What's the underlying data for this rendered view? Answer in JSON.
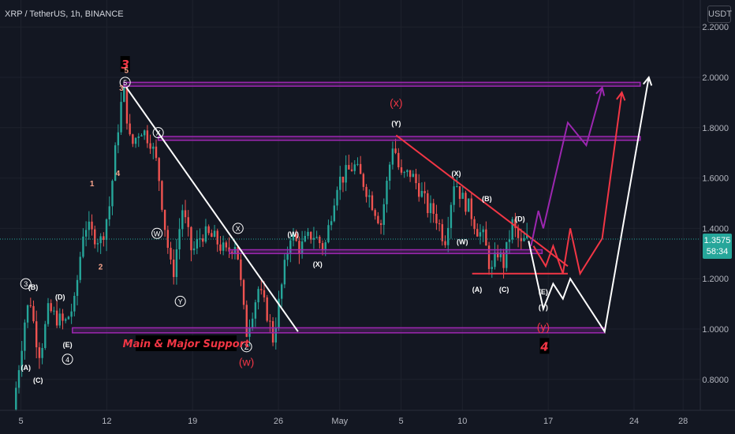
{
  "header": {
    "title": "XRP / TetherUS, 1h, BINANCE",
    "currency": "USDT"
  },
  "price_badge": {
    "price": "1.3575",
    "countdown": "58:34"
  },
  "colors": {
    "background": "#131722",
    "up": "#26a69a",
    "down": "#ef5350",
    "purple": "#9c27b0",
    "red_line": "#f23645",
    "white_line": "#ffffff",
    "grid": "#1e222d",
    "axis_text": "#b2b5be"
  },
  "chart_data": {
    "type": "candlestick",
    "symbol": "XRP / TetherUS",
    "interval": "1h",
    "exchange": "BINANCE",
    "ylim": [
      0.68,
      2.25
    ],
    "x_ticks": [
      "5",
      "12",
      "19",
      "26",
      "May",
      "5",
      "10",
      "17",
      "24",
      "28"
    ],
    "y_ticks": [
      "2.2000",
      "2.0000",
      "1.8000",
      "1.6000",
      "1.4000",
      "1.2000",
      "1.0000",
      "0.8000"
    ],
    "current_price": 1.3575,
    "price_path": [
      {
        "day": 4.6,
        "price": 0.68
      },
      {
        "day": 5.2,
        "price": 0.9
      },
      {
        "day": 5.6,
        "price": 1.05
      },
      {
        "day": 6.0,
        "price": 1.12
      },
      {
        "day": 6.4,
        "price": 0.98
      },
      {
        "day": 6.8,
        "price": 0.9
      },
      {
        "day": 7.5,
        "price": 1.08
      },
      {
        "day": 8.0,
        "price": 1.05
      },
      {
        "day": 8.8,
        "price": 1.02
      },
      {
        "day": 9.6,
        "price": 1.1
      },
      {
        "day": 10.4,
        "price": 1.42
      },
      {
        "day": 11.0,
        "price": 1.38
      },
      {
        "day": 11.8,
        "price": 1.35
      },
      {
        "day": 12.5,
        "price": 1.5
      },
      {
        "day": 13.1,
        "price": 1.78
      },
      {
        "day": 13.6,
        "price": 1.96
      },
      {
        "day": 14.2,
        "price": 1.72
      },
      {
        "day": 15.0,
        "price": 1.8
      },
      {
        "day": 15.8,
        "price": 1.75
      },
      {
        "day": 16.4,
        "price": 1.64
      },
      {
        "day": 17.0,
        "price": 1.4
      },
      {
        "day": 17.6,
        "price": 1.2
      },
      {
        "day": 18.4,
        "price": 1.48
      },
      {
        "day": 19.2,
        "price": 1.3
      },
      {
        "day": 20.0,
        "price": 1.38
      },
      {
        "day": 21.0,
        "price": 1.36
      },
      {
        "day": 22.0,
        "price": 1.3
      },
      {
        "day": 22.8,
        "price": 1.35
      },
      {
        "day": 23.6,
        "price": 0.98
      },
      {
        "day": 24.6,
        "price": 1.16
      },
      {
        "day": 25.4,
        "price": 1.05
      },
      {
        "day": 25.8,
        "price": 0.96
      },
      {
        "day": 26.6,
        "price": 1.2
      },
      {
        "day": 27.2,
        "price": 1.38
      },
      {
        "day": 28.0,
        "price": 1.32
      },
      {
        "day": 29.0,
        "price": 1.38
      },
      {
        "day": 30.0,
        "price": 1.32
      },
      {
        "day": 31.0,
        "price": 1.58
      },
      {
        "day": 32.4,
        "price": 1.65
      },
      {
        "day": 33.2,
        "price": 1.58
      },
      {
        "day": 34.6,
        "price": 1.42
      },
      {
        "day": 35.6,
        "price": 1.75
      },
      {
        "day": 36.2,
        "price": 1.6
      },
      {
        "day": 37.0,
        "price": 1.62
      },
      {
        "day": 37.8,
        "price": 1.55
      },
      {
        "day": 38.4,
        "price": 1.48
      },
      {
        "day": 39.0,
        "price": 1.46
      },
      {
        "day": 39.8,
        "price": 1.35
      },
      {
        "day": 40.6,
        "price": 1.6
      },
      {
        "day": 41.2,
        "price": 1.52
      },
      {
        "day": 41.8,
        "price": 1.48
      },
      {
        "day": 42.4,
        "price": 1.4
      },
      {
        "day": 43.0,
        "price": 1.36
      },
      {
        "day": 43.6,
        "price": 1.22
      },
      {
        "day": 44.1,
        "price": 1.31
      },
      {
        "day": 44.6,
        "price": 1.26
      },
      {
        "day": 45.3,
        "price": 1.42
      },
      {
        "day": 46.0,
        "price": 1.33
      },
      {
        "day": 46.4,
        "price": 1.3575
      }
    ],
    "levels": [
      {
        "name": "top-zone",
        "from_day": 13.4,
        "to_day": 55.5,
        "low": 1.965,
        "high": 1.98
      },
      {
        "name": "x-zone",
        "from_day": 16.2,
        "to_day": 55.5,
        "low": 1.75,
        "high": 1.765
      },
      {
        "name": "mid-zone",
        "from_day": 22.0,
        "to_day": 47.5,
        "low": 1.3,
        "high": 1.315
      },
      {
        "name": "support-zone",
        "from_day": 9.2,
        "to_day": 52.6,
        "low": 0.985,
        "high": 1.005
      }
    ],
    "drawn_lines": [
      {
        "name": "white-trendline",
        "color": "white",
        "points": [
          [
            13.6,
            1.96
          ],
          [
            27.6,
            0.99
          ]
        ]
      },
      {
        "name": "red-trendline",
        "color": "red",
        "points": [
          [
            35.6,
            1.77
          ],
          [
            49.6,
            1.25
          ]
        ]
      },
      {
        "name": "red-base",
        "color": "red",
        "points": [
          [
            41.8,
            1.22
          ],
          [
            49.6,
            1.22
          ]
        ]
      },
      {
        "name": "purple-path",
        "color": "purple",
        "points": [
          [
            46.6,
            1.33
          ],
          [
            47.2,
            1.47
          ],
          [
            47.6,
            1.4
          ],
          [
            49.6,
            1.82
          ],
          [
            51.1,
            1.73
          ],
          [
            52.4,
            1.96
          ]
        ]
      },
      {
        "name": "red-path",
        "color": "red",
        "points": [
          [
            46.8,
            1.33
          ],
          [
            47.8,
            1.25
          ],
          [
            48.4,
            1.33
          ],
          [
            49.2,
            1.22
          ],
          [
            49.8,
            1.4
          ],
          [
            50.6,
            1.22
          ],
          [
            52.4,
            1.36
          ],
          [
            54.0,
            1.94
          ]
        ]
      },
      {
        "name": "white-path",
        "color": "white",
        "points": [
          [
            46.4,
            1.35
          ],
          [
            47.6,
            1.08
          ],
          [
            48.4,
            1.18
          ],
          [
            49.2,
            1.12
          ],
          [
            49.8,
            1.2
          ],
          [
            52.6,
            0.99
          ],
          [
            56.2,
            2.0
          ]
        ]
      }
    ],
    "annotations": [
      {
        "text": "3",
        "day": 13.5,
        "price": 2.05,
        "style": "red-box"
      },
      {
        "text": "5",
        "day": 13.5,
        "price": 1.98,
        "style": "circle"
      },
      {
        "text": "5",
        "day": 13.6,
        "price": 2.03,
        "style": "orange"
      },
      {
        "text": "3",
        "day": 13.2,
        "price": 1.96,
        "style": "orange"
      },
      {
        "text": "1",
        "day": 10.8,
        "price": 1.58,
        "style": "orange"
      },
      {
        "text": "4",
        "day": 12.9,
        "price": 1.62,
        "style": "orange"
      },
      {
        "text": "2",
        "day": 11.5,
        "price": 1.25,
        "style": "orange"
      },
      {
        "text": "(A)",
        "day": 5.4,
        "price": 0.85,
        "style": "white"
      },
      {
        "text": "(B)",
        "day": 6.0,
        "price": 1.17,
        "style": "white"
      },
      {
        "text": "(C)",
        "day": 6.4,
        "price": 0.8,
        "style": "white"
      },
      {
        "text": "(D)",
        "day": 8.2,
        "price": 1.13,
        "style": "white"
      },
      {
        "text": "(E)",
        "day": 8.8,
        "price": 0.94,
        "style": "white"
      },
      {
        "text": "3",
        "day": 5.4,
        "price": 1.18,
        "style": "circle"
      },
      {
        "text": "4",
        "day": 8.8,
        "price": 0.88,
        "style": "circle"
      },
      {
        "text": "W",
        "day": 16.1,
        "price": 1.38,
        "style": "circle"
      },
      {
        "text": "X",
        "day": 16.2,
        "price": 1.78,
        "style": "circle"
      },
      {
        "text": "Y",
        "day": 18.0,
        "price": 1.11,
        "style": "circle"
      },
      {
        "text": "X",
        "day": 22.7,
        "price": 1.4,
        "style": "circle"
      },
      {
        "text": "Z",
        "day": 23.4,
        "price": 0.93,
        "style": "circle"
      },
      {
        "text": "(w)",
        "day": 23.4,
        "price": 0.87,
        "style": "red-text"
      },
      {
        "text": "(W)",
        "day": 27.2,
        "price": 1.38,
        "style": "white"
      },
      {
        "text": "(X)",
        "day": 29.2,
        "price": 1.26,
        "style": "white"
      },
      {
        "text": "(x)",
        "day": 35.6,
        "price": 1.9,
        "style": "red-text"
      },
      {
        "text": "(Y)",
        "day": 35.6,
        "price": 1.82,
        "style": "white"
      },
      {
        "text": "(X)",
        "day": 40.5,
        "price": 1.62,
        "style": "white"
      },
      {
        "text": "(B)",
        "day": 43.0,
        "price": 1.52,
        "style": "white"
      },
      {
        "text": "(W)",
        "day": 41.0,
        "price": 1.35,
        "style": "white"
      },
      {
        "text": "(D)",
        "day": 45.7,
        "price": 1.44,
        "style": "white"
      },
      {
        "text": "(A)",
        "day": 42.2,
        "price": 1.16,
        "style": "white"
      },
      {
        "text": "(C)",
        "day": 44.4,
        "price": 1.16,
        "style": "white"
      },
      {
        "text": "(E)",
        "day": 47.6,
        "price": 1.15,
        "style": "white"
      },
      {
        "text": "(Y)",
        "day": 47.6,
        "price": 1.09,
        "style": "white"
      },
      {
        "text": "(y)",
        "day": 47.6,
        "price": 1.01,
        "style": "red-text"
      },
      {
        "text": "4",
        "day": 47.7,
        "price": 0.93,
        "style": "red-box"
      }
    ],
    "support_label": "Main & Major Support"
  }
}
